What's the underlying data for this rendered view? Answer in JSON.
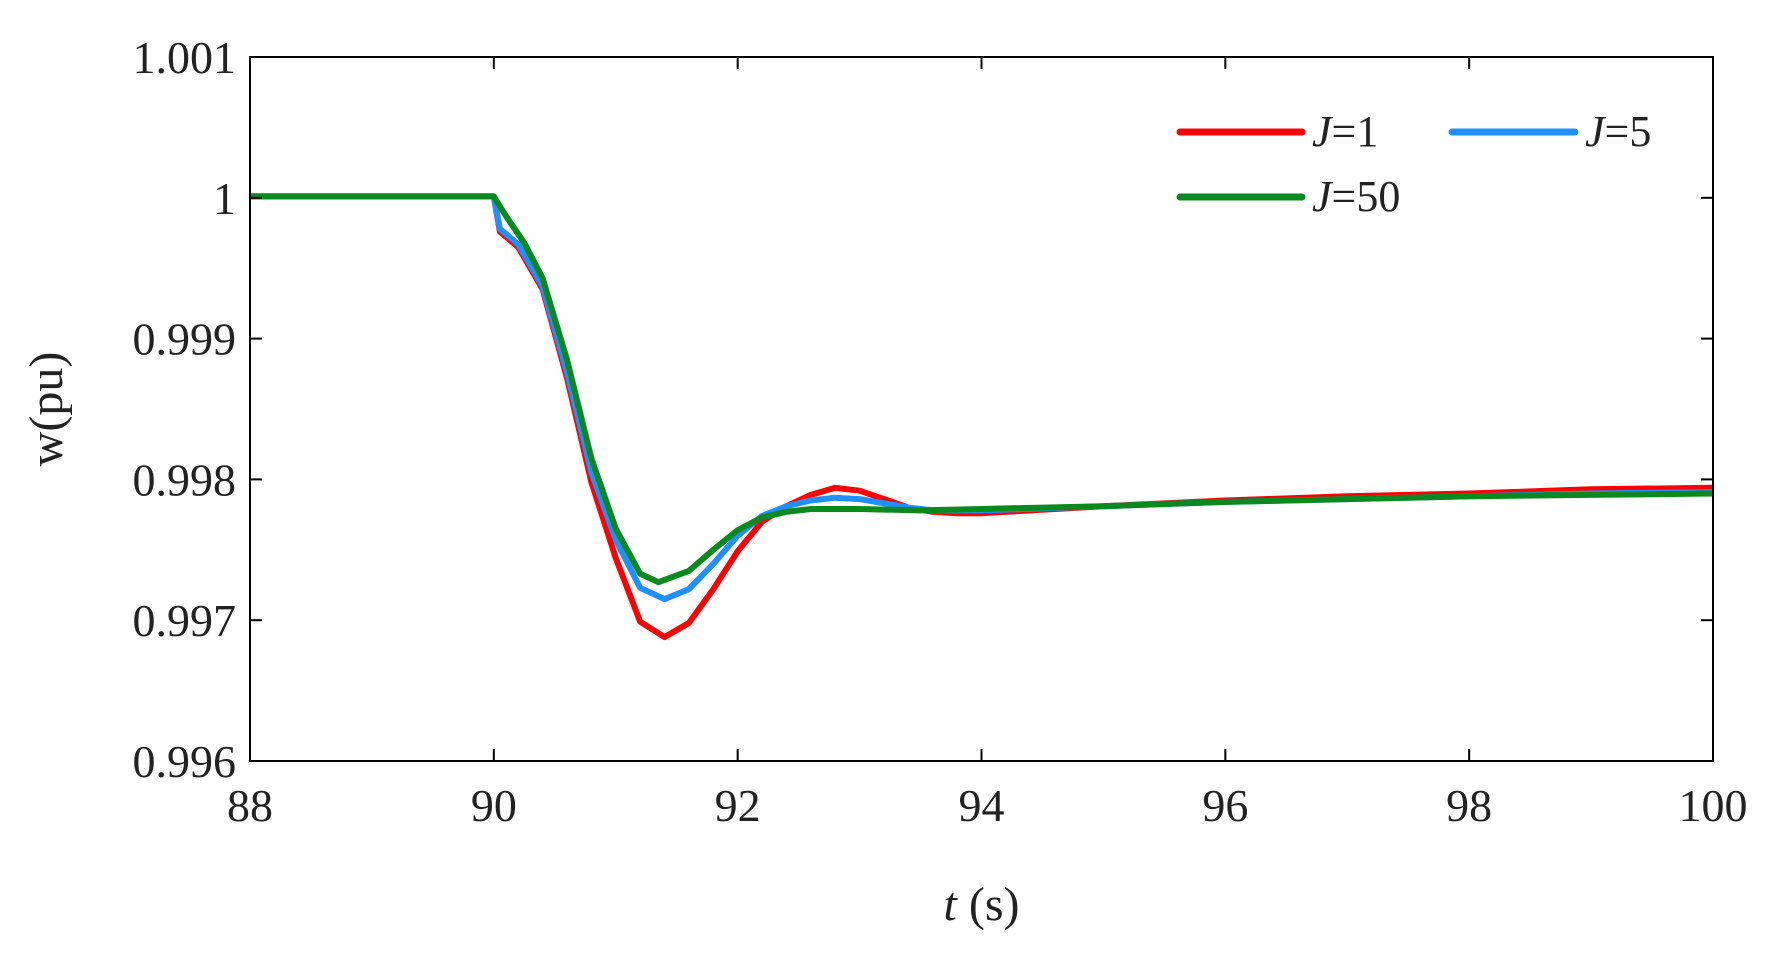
{
  "chart_data": {
    "type": "line",
    "xlabel_var": "t",
    "xlabel_unit": " (s)",
    "ylabel": "w(pu)",
    "xlim": [
      88,
      100
    ],
    "ylim": [
      0.996,
      1.001
    ],
    "xticks": [
      88,
      90,
      92,
      94,
      96,
      98,
      100
    ],
    "xtick_labels": [
      "88",
      "90",
      "92",
      "94",
      "96",
      "98",
      "100"
    ],
    "yticks": [
      0.996,
      0.997,
      0.998,
      0.999,
      1.0,
      1.001
    ],
    "ytick_labels": [
      "0.996",
      "0.997",
      "0.998",
      "0.999",
      "1",
      "1.001"
    ],
    "grid": false,
    "legend_position": "top-right",
    "series": [
      {
        "name_var": "J",
        "name_rest": "=1",
        "color": "#ff0000",
        "points": [
          [
            88.0,
            1.00001
          ],
          [
            90.0,
            1.00001
          ],
          [
            90.05,
            0.99976
          ],
          [
            90.2,
            0.99965
          ],
          [
            90.4,
            0.99935
          ],
          [
            90.6,
            0.99872
          ],
          [
            90.8,
            0.99798
          ],
          [
            91.0,
            0.99744
          ],
          [
            91.2,
            0.99699
          ],
          [
            91.4,
            0.99688
          ],
          [
            91.6,
            0.99698
          ],
          [
            91.8,
            0.99722
          ],
          [
            92.0,
            0.99749
          ],
          [
            92.2,
            0.9977
          ],
          [
            92.4,
            0.99781
          ],
          [
            92.6,
            0.99789
          ],
          [
            92.8,
            0.99794
          ],
          [
            93.0,
            0.99792
          ],
          [
            93.2,
            0.99786
          ],
          [
            93.4,
            0.9978
          ],
          [
            93.6,
            0.99777
          ],
          [
            93.8,
            0.99776
          ],
          [
            94.0,
            0.99776
          ],
          [
            94.4,
            0.99778
          ],
          [
            95.0,
            0.99781
          ],
          [
            96.0,
            0.99785
          ],
          [
            97.0,
            0.99788
          ],
          [
            98.0,
            0.9979
          ],
          [
            99.0,
            0.99793
          ],
          [
            100.0,
            0.99794
          ]
        ]
      },
      {
        "name_var": "J",
        "name_rest": "=5",
        "color": "#1e90ff",
        "points": [
          [
            88.0,
            1.00001
          ],
          [
            90.0,
            1.00001
          ],
          [
            90.05,
            0.99978
          ],
          [
            90.2,
            0.99967
          ],
          [
            90.4,
            0.99937
          ],
          [
            90.6,
            0.99876
          ],
          [
            90.8,
            0.99805
          ],
          [
            91.0,
            0.99757
          ],
          [
            91.2,
            0.99723
          ],
          [
            91.4,
            0.99715
          ],
          [
            91.6,
            0.99722
          ],
          [
            91.8,
            0.9974
          ],
          [
            92.0,
            0.9976
          ],
          [
            92.2,
            0.99774
          ],
          [
            92.4,
            0.99781
          ],
          [
            92.6,
            0.99785
          ],
          [
            92.8,
            0.99787
          ],
          [
            93.0,
            0.99786
          ],
          [
            93.2,
            0.99783
          ],
          [
            93.4,
            0.9978
          ],
          [
            93.6,
            0.99778
          ],
          [
            94.0,
            0.99778
          ],
          [
            95.0,
            0.99781
          ],
          [
            96.0,
            0.99784
          ],
          [
            97.0,
            0.99786
          ],
          [
            98.0,
            0.99788
          ],
          [
            99.0,
            0.9979
          ],
          [
            100.0,
            0.99791
          ]
        ]
      },
      {
        "name_var": "J",
        "name_rest": "=50",
        "color": "#0a8a1e",
        "points": [
          [
            88.0,
            1.00001
          ],
          [
            90.0,
            1.00001
          ],
          [
            90.1,
            0.99987
          ],
          [
            90.25,
            0.99968
          ],
          [
            90.4,
            0.99943
          ],
          [
            90.6,
            0.99885
          ],
          [
            90.8,
            0.99815
          ],
          [
            91.0,
            0.99765
          ],
          [
            91.2,
            0.99733
          ],
          [
            91.35,
            0.99727
          ],
          [
            91.6,
            0.99735
          ],
          [
            91.8,
            0.9975
          ],
          [
            92.0,
            0.99764
          ],
          [
            92.2,
            0.99773
          ],
          [
            92.4,
            0.99777
          ],
          [
            92.6,
            0.99779
          ],
          [
            93.0,
            0.99779
          ],
          [
            93.5,
            0.99778
          ],
          [
            94.0,
            0.99779
          ],
          [
            95.0,
            0.99781
          ],
          [
            96.0,
            0.99784
          ],
          [
            97.0,
            0.99786
          ],
          [
            98.0,
            0.99788
          ],
          [
            99.0,
            0.99789
          ],
          [
            100.0,
            0.9979
          ]
        ]
      }
    ]
  }
}
